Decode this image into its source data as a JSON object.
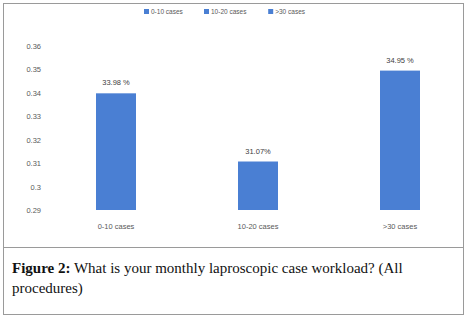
{
  "chart_data": {
    "type": "bar",
    "title": "Figure 2: What is your monthly laproscopic case workload? (All procedures)",
    "categories": [
      "0-10 cases",
      "10-20 cases",
      ">30 cases"
    ],
    "values": [
      0.3398,
      0.3107,
      0.3495
    ],
    "value_labels": [
      "33.98 %",
      "31.07%",
      "34.95 %"
    ],
    "colors": [
      "#4a7fd3",
      "#4a7fd3",
      "#4a7fd3"
    ],
    "ylim": [
      0.29,
      0.36
    ],
    "yticks": [
      0.29,
      0.3,
      0.31,
      0.32,
      0.33,
      0.34,
      0.35,
      0.36
    ],
    "grid": false,
    "legend": "top",
    "data_labels": true
  }
}
